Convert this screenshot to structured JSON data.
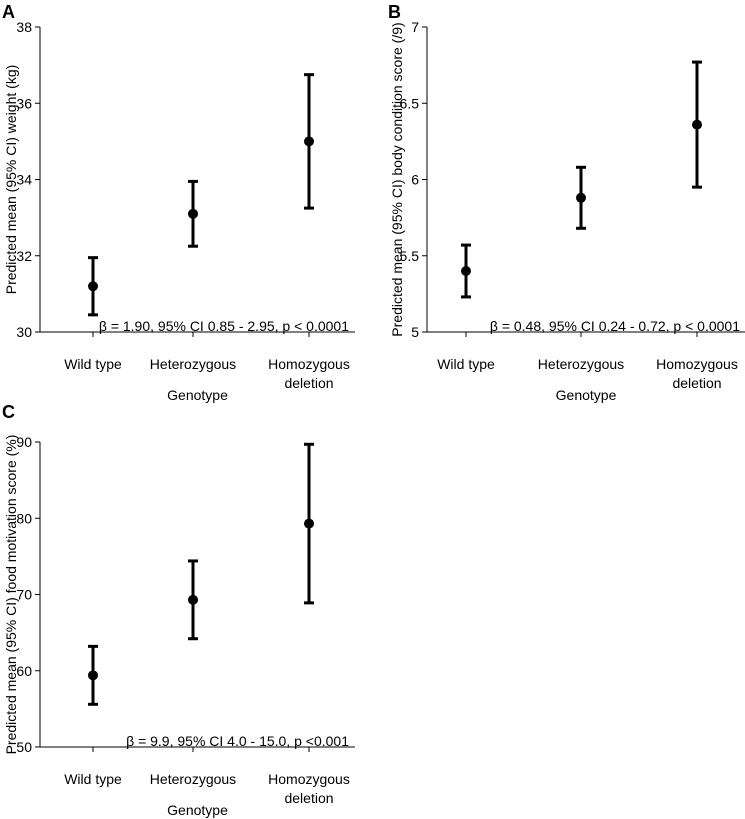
{
  "chart_data": [
    {
      "type": "scatter",
      "panel_label": "A",
      "categories": [
        "Wild type",
        "Heterozygous",
        "Homozygous deletion"
      ],
      "estimates": [
        31.2,
        33.1,
        35.0
      ],
      "ci_lower": [
        30.45,
        32.25,
        33.25
      ],
      "ci_upper": [
        31.95,
        33.95,
        36.75
      ],
      "ylabel": "Predicted mean (95% CI) weight (kg)",
      "xlabel": "Genotype",
      "ylim": [
        30,
        38
      ],
      "yticks": [
        "30",
        "32",
        "34",
        "36",
        "38"
      ],
      "annotation": "β = 1.90, 95% CI 0.85 - 2.95, p < 0.0001",
      "grid": false
    },
    {
      "type": "scatter",
      "panel_label": "B",
      "categories": [
        "Wild type",
        "Heterozygous",
        "Homozygous deletion"
      ],
      "estimates": [
        5.4,
        5.88,
        6.36
      ],
      "ci_lower": [
        5.23,
        5.68,
        5.95
      ],
      "ci_upper": [
        5.57,
        6.08,
        6.77
      ],
      "ylabel": "Predicted mean (95% CI) body condition score (/9)",
      "xlabel": "Genotype",
      "ylim": [
        5,
        7
      ],
      "yticks": [
        "5",
        "5.5",
        "6",
        "6.5",
        "7"
      ],
      "annotation": "β = 0.48, 95% CI 0.24 - 0.72, p < 0.0001",
      "grid": false
    },
    {
      "type": "scatter",
      "panel_label": "C",
      "categories": [
        "Wild type",
        "Heterozygous",
        "Homozygous deletion"
      ],
      "estimates": [
        59.4,
        69.3,
        79.3
      ],
      "ci_lower": [
        55.6,
        64.2,
        68.9
      ],
      "ci_upper": [
        63.2,
        74.4,
        89.7
      ],
      "ylabel": "Predicted mean (95% CI) food motivation score (%)",
      "xlabel": "Genotype",
      "ylim": [
        50,
        90
      ],
      "yticks": [
        "50",
        "60",
        "70",
        "80",
        "90"
      ],
      "annotation": "β = 9.9, 95% CI 4.0 - 15.0, p <0.001",
      "grid": false
    }
  ],
  "style": {
    "marker_color": "#000000",
    "background": "#ffffff"
  }
}
